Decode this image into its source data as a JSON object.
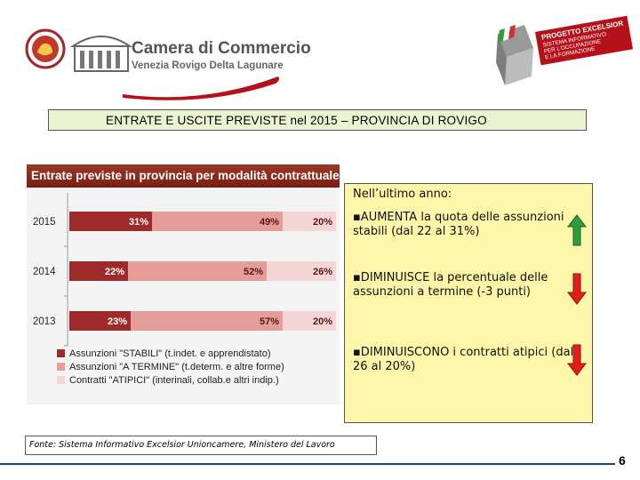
{
  "header": {
    "org_name": "Camera di Commercio",
    "org_subtitle": "Venezia Rovigo Delta Lagunare",
    "project_badge": "PROGETTO EXCELSIOR",
    "project_tagline_1": "SISTEMA INFORMATIVO",
    "project_tagline_2": "PER L'OCCUPAZIONE",
    "project_tagline_3": "E LA FORMAZIONE"
  },
  "slide_title": "ENTRATE E USCITE PREVISTE nel 2015 – PROVINCIA DI ROVIGO",
  "chart_data": {
    "type": "bar",
    "stacked": true,
    "orientation": "horizontal",
    "title": "Entrate previste in provincia per modalità contrattuale",
    "categories": [
      "2015",
      "2014",
      "2013"
    ],
    "series": [
      {
        "name": "Assunzioni \"STABILI\" (t.indet. e apprendistato)",
        "values": [
          31,
          22,
          23
        ],
        "labels": [
          "31%",
          "22%",
          "23%"
        ],
        "color": "#9e2a2b"
      },
      {
        "name": "Assunzioni \"A TERMINE\" (t.determ. e altre forme)",
        "values": [
          49,
          52,
          57
        ],
        "labels": [
          "49%",
          "52%",
          "57%"
        ],
        "color": "#e59d99"
      },
      {
        "name": "Contratti \"ATIPICI\" (interinali, collab.e altri indip.)",
        "values": [
          20,
          26,
          20
        ],
        "labels": [
          "20%",
          "26%",
          "20%"
        ],
        "color": "#f3d6d5"
      }
    ],
    "xlim": [
      0,
      100
    ],
    "legend_position": "bottom"
  },
  "notes": {
    "intro": "Nell’ultimo anno:",
    "items": [
      {
        "bold": "▪AUMENTA la quota delle assunzioni stabili",
        "light": " (dal 22 al 31%)",
        "arrow": "up",
        "arrow_color": "#2e9e3c"
      },
      {
        "bold": "▪DIMINUISCE la percentuale delle assunzioni a termine",
        "light": " (-3 punti)",
        "arrow": "down",
        "arrow_color": "#e11e1e"
      },
      {
        "bold": "▪DIMINUISCONO i contratti atipici",
        "light": " (dal 26 al 20%)",
        "arrow": "down",
        "arrow_color": "#e11e1e"
      }
    ]
  },
  "source": "Fonte: Sistema Informativo Excelsior Unioncamere, Ministero del Lavoro",
  "page_number": "6",
  "colors": {
    "title_box_bg": "#ebf4d0",
    "note_bg": "#fdf6a8",
    "chart_header": "#8a2a1c",
    "footer_line": "#1f3f8f"
  }
}
